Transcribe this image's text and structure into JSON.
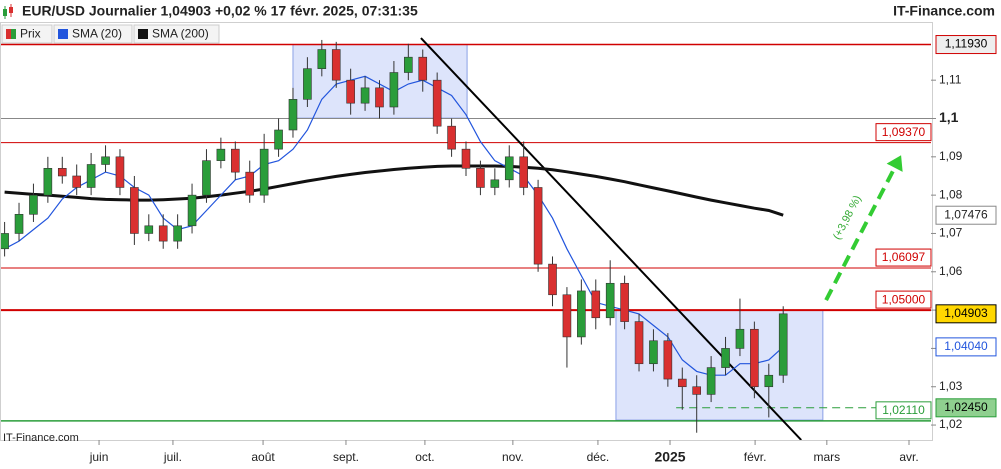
{
  "chart_data": {
    "type": "candlestick",
    "title": "EUR/USD Journalier 1,04903 +0,02 % 17 févr. 2025, 07:31:35",
    "brand": "IT-Finance.com",
    "watermark": "IT-Finance.com",
    "xlim": [
      0,
      258
    ],
    "ylim": [
      1.0161,
      1.1244
    ],
    "xticks": [
      {
        "value": 27.2,
        "label": "juin"
      },
      {
        "value": 47.7,
        "label": "juil."
      },
      {
        "value": 72.7,
        "label": "août"
      },
      {
        "value": 95.7,
        "label": "sept."
      },
      {
        "value": 117.6,
        "label": "oct."
      },
      {
        "value": 142,
        "label": "nov."
      },
      {
        "value": 165.6,
        "label": "déc."
      },
      {
        "value": 185.6,
        "label": "2025",
        "weight": "bold"
      },
      {
        "value": 209.2,
        "label": "févr."
      },
      {
        "value": 229.1,
        "label": "mars"
      },
      {
        "value": 251.9,
        "label": "avr."
      }
    ],
    "yticks": [
      {
        "value": 1.02,
        "label": "1,02"
      },
      {
        "value": 1.03,
        "label": "1,03"
      },
      {
        "value": 1.04,
        "label": "1,04"
      },
      {
        "value": 1.05,
        "label": "1,05"
      },
      {
        "value": 1.06,
        "label": "1,06"
      },
      {
        "value": 1.07,
        "label": "1,07"
      },
      {
        "value": 1.08,
        "label": "1,08"
      },
      {
        "value": 1.09,
        "label": "1,09"
      },
      {
        "value": 1.1,
        "label": "1,1",
        "weight": "bold"
      },
      {
        "value": 1.11,
        "label": "1,11"
      }
    ],
    "x": [
      1,
      5,
      9,
      13,
      17,
      21,
      25,
      29,
      33,
      37,
      41,
      45,
      49,
      53,
      57,
      61,
      65,
      69,
      73,
      77,
      81,
      85,
      89,
      93,
      97,
      101,
      105,
      109,
      113,
      117,
      121,
      125,
      129,
      133,
      137,
      141,
      145,
      149,
      153,
      157,
      161,
      165,
      169,
      173,
      177,
      181,
      185,
      189,
      193,
      197,
      201,
      205,
      209,
      213,
      217
    ],
    "series": [
      {
        "name": "Prix",
        "up_color": "#2a9d3a",
        "down_color": "#d93030",
        "last_label": "1,04903",
        "tag_fill": "#ffd700",
        "tag_stroke": "#000000",
        "tag_text": "#000000",
        "open": [
          1.066,
          1.07,
          1.075,
          1.08,
          1.087,
          1.085,
          1.082,
          1.088,
          1.09,
          1.082,
          1.07,
          1.072,
          1.068,
          1.072,
          1.08,
          1.089,
          1.092,
          1.086,
          1.08,
          1.092,
          1.097,
          1.105,
          1.113,
          1.118,
          1.11,
          1.104,
          1.108,
          1.103,
          1.112,
          1.116,
          1.11,
          1.098,
          1.092,
          1.087,
          1.082,
          1.084,
          1.09,
          1.082,
          1.062,
          1.054,
          1.043,
          1.055,
          1.048,
          1.057,
          1.047,
          1.036,
          1.042,
          1.032,
          1.03,
          1.028,
          1.035,
          1.04,
          1.045,
          1.03,
          1.033
        ],
        "high": [
          1.073,
          1.078,
          1.083,
          1.09,
          1.09,
          1.088,
          1.091,
          1.093,
          1.092,
          1.085,
          1.075,
          1.075,
          1.075,
          1.083,
          1.092,
          1.095,
          1.094,
          1.089,
          1.096,
          1.1,
          1.108,
          1.116,
          1.1205,
          1.12,
          1.113,
          1.111,
          1.11,
          1.115,
          1.1195,
          1.118,
          1.112,
          1.1,
          1.094,
          1.089,
          1.087,
          1.093,
          1.094,
          1.084,
          1.064,
          1.056,
          1.058,
          1.058,
          1.063,
          1.059,
          1.049,
          1.045,
          1.044,
          1.035,
          1.033,
          1.038,
          1.043,
          1.053,
          1.047,
          1.036,
          1.051
        ],
        "low": [
          1.064,
          1.068,
          1.073,
          1.078,
          1.083,
          1.08,
          1.08,
          1.086,
          1.08,
          1.067,
          1.068,
          1.066,
          1.066,
          1.07,
          1.078,
          1.087,
          1.084,
          1.078,
          1.078,
          1.09,
          1.095,
          1.103,
          1.111,
          1.108,
          1.101,
          1.102,
          1.1,
          1.101,
          1.11,
          1.107,
          1.096,
          1.09,
          1.085,
          1.08,
          1.08,
          1.082,
          1.08,
          1.06,
          1.051,
          1.035,
          1.041,
          1.045,
          1.046,
          1.045,
          1.034,
          1.034,
          1.03,
          1.024,
          1.018,
          1.026,
          1.033,
          1.038,
          1.027,
          1.022,
          1.031
        ],
        "close": [
          1.07,
          1.075,
          1.08,
          1.087,
          1.085,
          1.082,
          1.088,
          1.09,
          1.082,
          1.07,
          1.072,
          1.068,
          1.072,
          1.08,
          1.089,
          1.092,
          1.086,
          1.08,
          1.092,
          1.097,
          1.105,
          1.113,
          1.118,
          1.11,
          1.104,
          1.108,
          1.103,
          1.112,
          1.116,
          1.11,
          1.098,
          1.092,
          1.087,
          1.082,
          1.084,
          1.09,
          1.082,
          1.062,
          1.054,
          1.043,
          1.055,
          1.048,
          1.057,
          1.047,
          1.036,
          1.042,
          1.032,
          1.03,
          1.028,
          1.035,
          1.04,
          1.045,
          1.03,
          1.033,
          1.04903
        ]
      },
      {
        "name": "SMA (20)",
        "color": "#2255dd",
        "last_label": "1,04040",
        "tag_fill": "#ffffff",
        "tag_stroke": "#2255dd",
        "tag_text": "#2255dd",
        "values": [
          1.066,
          1.068,
          1.071,
          1.074,
          1.079,
          1.082,
          1.084,
          1.086,
          1.085,
          1.082,
          1.08,
          1.074,
          1.071,
          1.072,
          1.076,
          1.08,
          1.084,
          1.085,
          1.088,
          1.089,
          1.092,
          1.097,
          1.105,
          1.109,
          1.11,
          1.111,
          1.109,
          1.107,
          1.109,
          1.11,
          1.108,
          1.106,
          1.101,
          1.094,
          1.089,
          1.087,
          1.085,
          1.08,
          1.074,
          1.066,
          1.059,
          1.052,
          1.051,
          1.05,
          1.049,
          1.046,
          1.043,
          1.037,
          1.034,
          1.033,
          1.033,
          1.036,
          1.036,
          1.037,
          1.0404
        ]
      },
      {
        "name": "SMA (200)",
        "color": "#111111",
        "last_label": "1,07476",
        "tag_fill": "#ffffff",
        "tag_stroke": "#888888",
        "tag_text": "#222222",
        "values": [
          1.0808,
          1.0805,
          1.0802,
          1.08,
          1.0797,
          1.0794,
          1.0791,
          1.0789,
          1.0788,
          1.0787,
          1.0787,
          1.0788,
          1.079,
          1.0792,
          1.0796,
          1.08,
          1.0805,
          1.081,
          1.0816,
          1.0823,
          1.083,
          1.0837,
          1.0843,
          1.0849,
          1.0854,
          1.0859,
          1.0863,
          1.0867,
          1.087,
          1.0873,
          1.0875,
          1.0876,
          1.0876,
          1.0876,
          1.0876,
          1.0875,
          1.0873,
          1.087,
          1.0866,
          1.0861,
          1.0855,
          1.0849,
          1.0842,
          1.0835,
          1.0827,
          1.0819,
          1.0811,
          1.0803,
          1.0795,
          1.0787,
          1.078,
          1.0773,
          1.0766,
          1.076,
          1.07476
        ]
      }
    ],
    "levels": [
      {
        "value": 1.1193,
        "label": "1,11930",
        "color": "#d00000",
        "width": 1.5,
        "tag": "axis",
        "tag_fill": "#eeeeee"
      },
      {
        "value": 1.1,
        "color": "#888888",
        "width": 1
      },
      {
        "value": 1.0937,
        "label": "1,09370",
        "color": "#d00000",
        "width": 1,
        "tag": "inner"
      },
      {
        "value": 1.06097,
        "label": "1,06097",
        "color": "#d00000",
        "width": 1,
        "tag": "inner"
      },
      {
        "value": 1.05,
        "label": "1,05000",
        "color": "#d00000",
        "width": 2,
        "tag": "inner"
      },
      {
        "value": 1.0211,
        "label": "1,02110",
        "color": "#2a9d3a",
        "width": 1.5,
        "tag": "inner"
      },
      {
        "value": 1.0245,
        "label": "1,02450",
        "color": "#2a9d3a",
        "width": 1,
        "dashed": true,
        "x": [
          187.3,
          242.8
        ],
        "tag": "axis",
        "tag_fill": "#8fd08f"
      }
    ],
    "zones": [
      {
        "x": [
          81,
          129.3
        ],
        "y": [
          1.1001,
          1.1193
        ],
        "color": "#dde4fb"
      },
      {
        "x": [
          170.6,
          228
        ],
        "y": [
          1.0213,
          1.05
        ],
        "color": "#dde4fb"
      }
    ],
    "trendline": {
      "x": [
        116.5,
        222
      ],
      "y": [
        1.121,
        1.0161
      ],
      "color": "#000000"
    },
    "arrow": {
      "x": [
        228.9,
        249.7
      ],
      "y": [
        1.0526,
        1.0904
      ],
      "color": "#33cc33",
      "label": "(+3,98 %)"
    }
  }
}
